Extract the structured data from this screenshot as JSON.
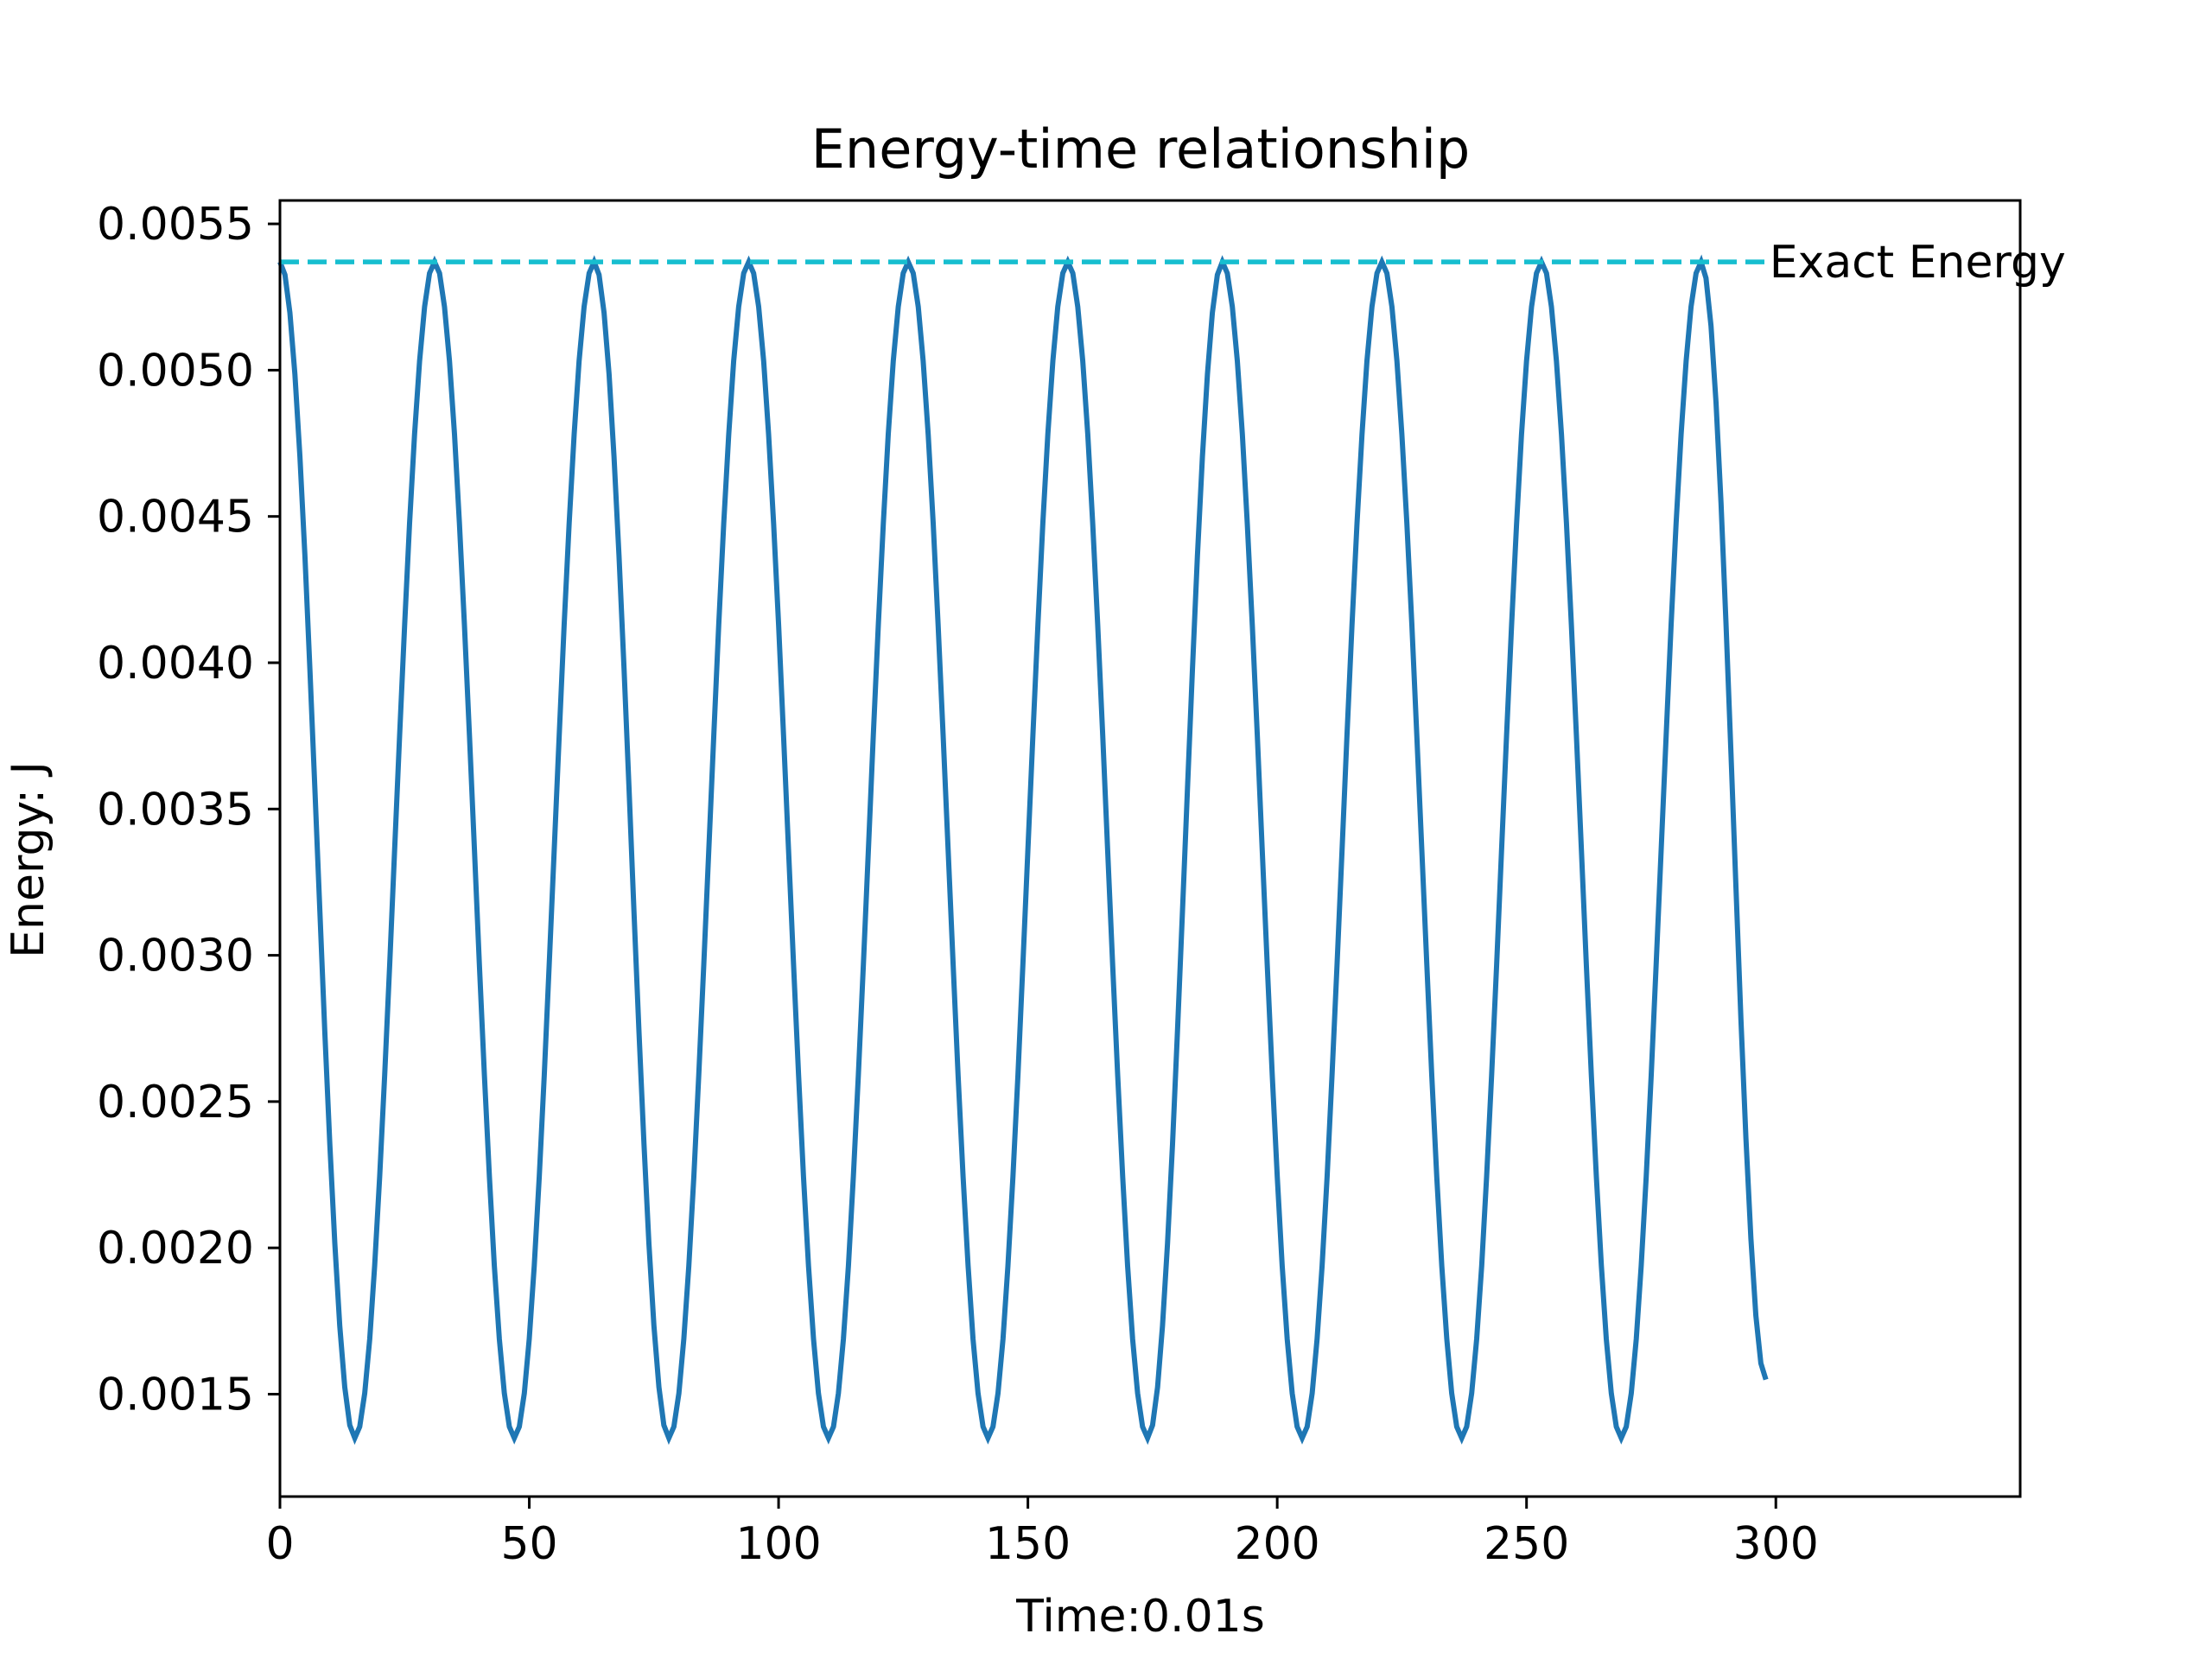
{
  "chart_data": {
    "type": "line",
    "title": "Energy-time relationship",
    "xlabel": "Time:0.01s",
    "ylabel": "Energy: J",
    "xlim": [
      0,
      349
    ],
    "ylim": [
      0.00115,
      0.00558
    ],
    "x_ticks": [
      0,
      50,
      100,
      150,
      200,
      250,
      300
    ],
    "y_ticks": [
      0.0015,
      0.002,
      0.0025,
      0.003,
      0.0035,
      0.004,
      0.0045,
      0.005,
      0.0055
    ],
    "y_tick_labels": [
      "0.0015",
      "0.0020",
      "0.0025",
      "0.0030",
      "0.0035",
      "0.0040",
      "0.0045",
      "0.0050",
      "0.0055"
    ],
    "x_tick_labels": [
      "0",
      "50",
      "100",
      "150",
      "200",
      "250",
      "300"
    ],
    "series": [
      {
        "color": "#1f77b4",
        "style": "solid",
        "points": [
          [
            0,
            0.00537
          ],
          [
            15,
            0.00135
          ],
          [
            31,
            0.00537
          ],
          [
            47,
            0.00135
          ],
          [
            63,
            0.00537
          ],
          [
            78,
            0.00135
          ],
          [
            94,
            0.00537
          ],
          [
            110,
            0.00135
          ],
          [
            126,
            0.00537
          ],
          [
            142,
            0.00135
          ],
          [
            158,
            0.00537
          ],
          [
            174,
            0.00135
          ],
          [
            189,
            0.00537
          ],
          [
            205,
            0.00135
          ],
          [
            221,
            0.00537
          ],
          [
            237,
            0.00135
          ],
          [
            253,
            0.00537
          ],
          [
            269,
            0.00135
          ],
          [
            285,
            0.00537
          ],
          [
            298,
            0.00155
          ]
        ]
      },
      {
        "name": "Exact Energy",
        "color": "#17becf",
        "style": "dashed",
        "points": [
          [
            0,
            0.00537
          ],
          [
            298,
            0.00537
          ]
        ]
      }
    ],
    "annotations": [
      {
        "text": "Exact Energy",
        "x": 298,
        "y": 0.00537
      }
    ],
    "grid": false
  }
}
